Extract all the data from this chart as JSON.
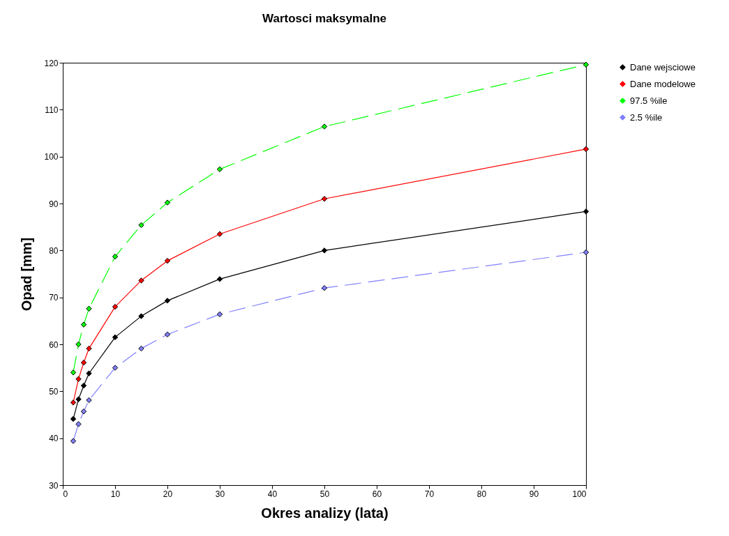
{
  "chart_data": {
    "type": "line",
    "title": "Wartosci maksymalne",
    "xlabel": "Okres analizy (lata)",
    "ylabel": "Opad [mm]",
    "x": [
      2,
      3,
      4,
      5,
      10,
      15,
      20,
      30,
      50,
      100
    ],
    "xlim": [
      0,
      100
    ],
    "xticks": [
      0,
      10,
      20,
      30,
      40,
      50,
      60,
      70,
      80,
      90,
      100
    ],
    "ylim": [
      30,
      120
    ],
    "yticks": [
      30,
      40,
      50,
      60,
      70,
      80,
      90,
      100,
      110,
      120
    ],
    "grid": false,
    "legend": "right",
    "marker": "diamond",
    "series": [
      {
        "name": "Dane wejsciowe",
        "color": "#000000",
        "line_style": "solid",
        "values": [
          44.1,
          48.3,
          51.2,
          53.8,
          61.5,
          66.0,
          69.3,
          73.9,
          80.0,
          88.3
        ]
      },
      {
        "name": "Dane modelowe",
        "color": "#ff0000",
        "line_style": "solid",
        "values": [
          47.6,
          52.6,
          56.1,
          59.1,
          68.0,
          73.6,
          77.8,
          83.5,
          91.0,
          101.6
        ]
      },
      {
        "name": "97.5 %ile",
        "color": "#00ff00",
        "line_style": "dashed",
        "values": [
          54.0,
          60.0,
          64.2,
          67.6,
          78.7,
          85.4,
          90.2,
          97.3,
          106.4,
          119.6
        ]
      },
      {
        "name": "2.5 %ile",
        "color": "#8080ff",
        "line_style": "dashed",
        "values": [
          39.4,
          43.0,
          45.7,
          48.1,
          55.0,
          59.1,
          62.1,
          66.4,
          72.0,
          79.6
        ]
      }
    ]
  }
}
